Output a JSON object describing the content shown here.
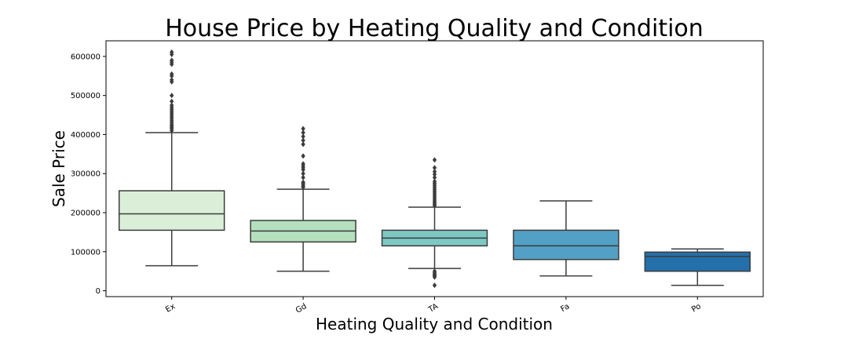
{
  "chart_data": {
    "type": "box",
    "title": "House Price by Heating Quality and Condition",
    "xlabel": "Heating Quality and Condition",
    "ylabel": "Sale Price",
    "ylim": [
      -15000,
      640000
    ],
    "yticks": [
      0,
      100000,
      200000,
      300000,
      400000,
      500000,
      600000
    ],
    "ytick_labels": [
      "0",
      "100000",
      "200000",
      "300000",
      "400000",
      "500000",
      "600000"
    ],
    "grid": false,
    "categories": [
      "Ex",
      "Gd",
      "TA",
      "Fa",
      "Po"
    ],
    "colors": [
      "#dbefd8",
      "#b4e0be",
      "#7dc8c3",
      "#53a0c6",
      "#2370ab"
    ],
    "boxes": [
      {
        "category": "Ex",
        "whisker_low": 64000,
        "q1": 155000,
        "median": 197000,
        "q3": 256000,
        "whisker_high": 405000,
        "outliers": [
          410000,
          415000,
          418000,
          422000,
          425000,
          430000,
          435000,
          440000,
          445000,
          450000,
          455000,
          460000,
          465000,
          470000,
          475000,
          485000,
          500000,
          535000,
          540000,
          550000,
          555000,
          580000,
          585000,
          590000,
          605000,
          611000
        ]
      },
      {
        "category": "Gd",
        "whisker_low": 50000,
        "q1": 125000,
        "median": 153000,
        "q3": 180000,
        "whisker_high": 260000,
        "outliers": [
          265000,
          268000,
          272000,
          275000,
          278000,
          290000,
          300000,
          310000,
          315000,
          320000,
          325000,
          345000,
          375000,
          385000,
          395000,
          405000,
          415000
        ]
      },
      {
        "category": "TA",
        "whisker_low": 57000,
        "q1": 115000,
        "median": 135000,
        "q3": 155000,
        "whisker_high": 214000,
        "outliers": [
          14000,
          35000,
          38000,
          40000,
          43000,
          46000,
          50000,
          218000,
          222000,
          226000,
          230000,
          235000,
          240000,
          245000,
          250000,
          255000,
          260000,
          265000,
          270000,
          275000,
          280000,
          290000,
          298000,
          305000,
          315000,
          335000
        ]
      },
      {
        "category": "Fa",
        "whisker_low": 38000,
        "q1": 80000,
        "median": 115000,
        "q3": 155000,
        "whisker_high": 230000,
        "outliers": []
      },
      {
        "category": "Po",
        "whisker_low": 14000,
        "q1": 50000,
        "median": 88000,
        "q3": 99000,
        "whisker_high": 107000,
        "outliers": []
      }
    ]
  }
}
